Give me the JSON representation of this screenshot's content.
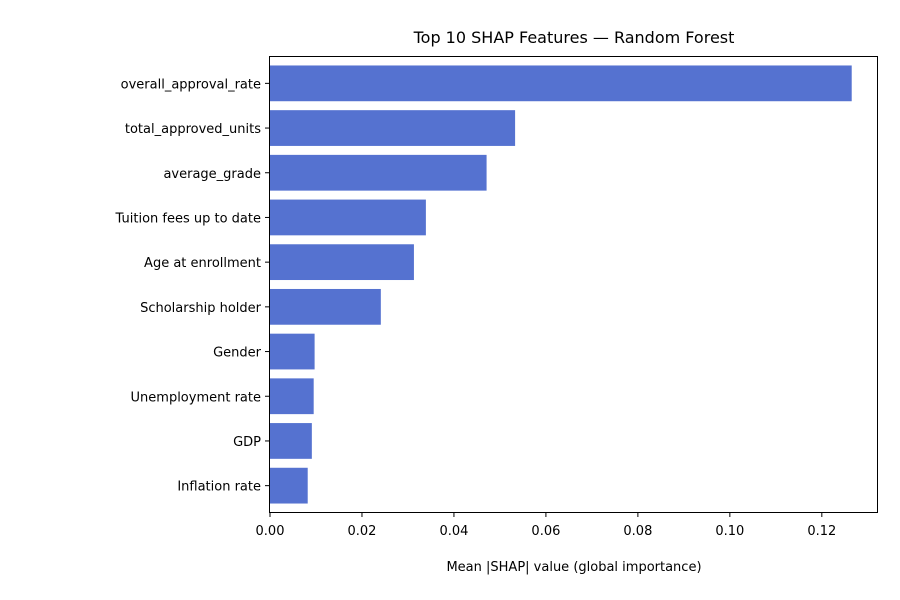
{
  "chart_data": {
    "type": "bar",
    "orientation": "horizontal",
    "title": "Top 10 SHAP Features — Random Forest",
    "xlabel": "Mean |SHAP| value (global importance)",
    "ylabel": "",
    "xlim": [
      0,
      0.132
    ],
    "xticks": [
      0.0,
      0.02,
      0.04,
      0.06,
      0.08,
      0.1,
      0.12
    ],
    "xtick_labels": [
      "0.00",
      "0.02",
      "0.04",
      "0.06",
      "0.08",
      "0.10",
      "0.12"
    ],
    "grid": false,
    "bar_color": "#5572d0",
    "categories": [
      "overall_approval_rate",
      "total_approved_units",
      "average_grade",
      "Tuition fees up to date",
      "Age at enrollment",
      "Scholarship holder",
      "Gender",
      "Unemployment rate",
      "GDP",
      "Inflation rate"
    ],
    "values": [
      0.1265,
      0.0533,
      0.0471,
      0.0339,
      0.0313,
      0.0241,
      0.0097,
      0.0095,
      0.0091,
      0.0082
    ]
  }
}
